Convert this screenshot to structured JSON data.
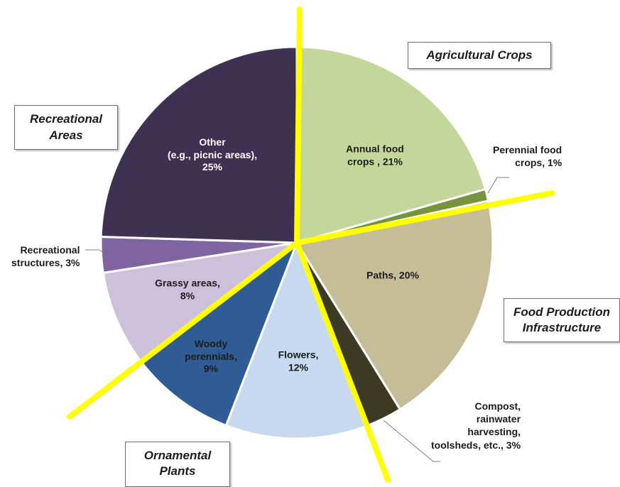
{
  "chart_data": {
    "type": "pie",
    "slices": [
      {
        "key": "annual",
        "label": "Annual food\ncrops , 21%",
        "value": 21,
        "color": "#c4d79b"
      },
      {
        "key": "perennial",
        "label": "Perennial food\ncrops, 1%",
        "value": 1,
        "color": "#77933c"
      },
      {
        "key": "paths",
        "label": "Paths, 20%",
        "value": 20,
        "color": "#c4bd97"
      },
      {
        "key": "compost",
        "label": "Compost,\nrainwater\nharvesting,\ntoolsheds, etc., 3%",
        "value": 3,
        "color": "#3d3a23"
      },
      {
        "key": "flowers",
        "label": "Flowers,\n12%",
        "value": 12,
        "color": "#c6d9f0"
      },
      {
        "key": "woody",
        "label": "Woody\nperennials,\n9%",
        "value": 9,
        "color": "#2f5c94"
      },
      {
        "key": "grassy",
        "label": "Grassy areas,\n8%",
        "value": 8,
        "color": "#ccc0da"
      },
      {
        "key": "recstruct",
        "label": "Recreational\nstructures, 3%",
        "value": 3,
        "color": "#8064a2"
      },
      {
        "key": "other",
        "label": "Other\n(e.g., picnic areas),\n25%",
        "value": 25,
        "color": "#3f3151"
      }
    ],
    "groups": [
      {
        "key": "agri",
        "label": "Agricultural Crops"
      },
      {
        "key": "food",
        "label": "Food Production\nInfrastructure"
      },
      {
        "key": "orn",
        "label": "Ornamental\nPlants"
      },
      {
        "key": "rec",
        "label": "Recreational\nAreas"
      }
    ],
    "divider_color": "#ffff00"
  }
}
